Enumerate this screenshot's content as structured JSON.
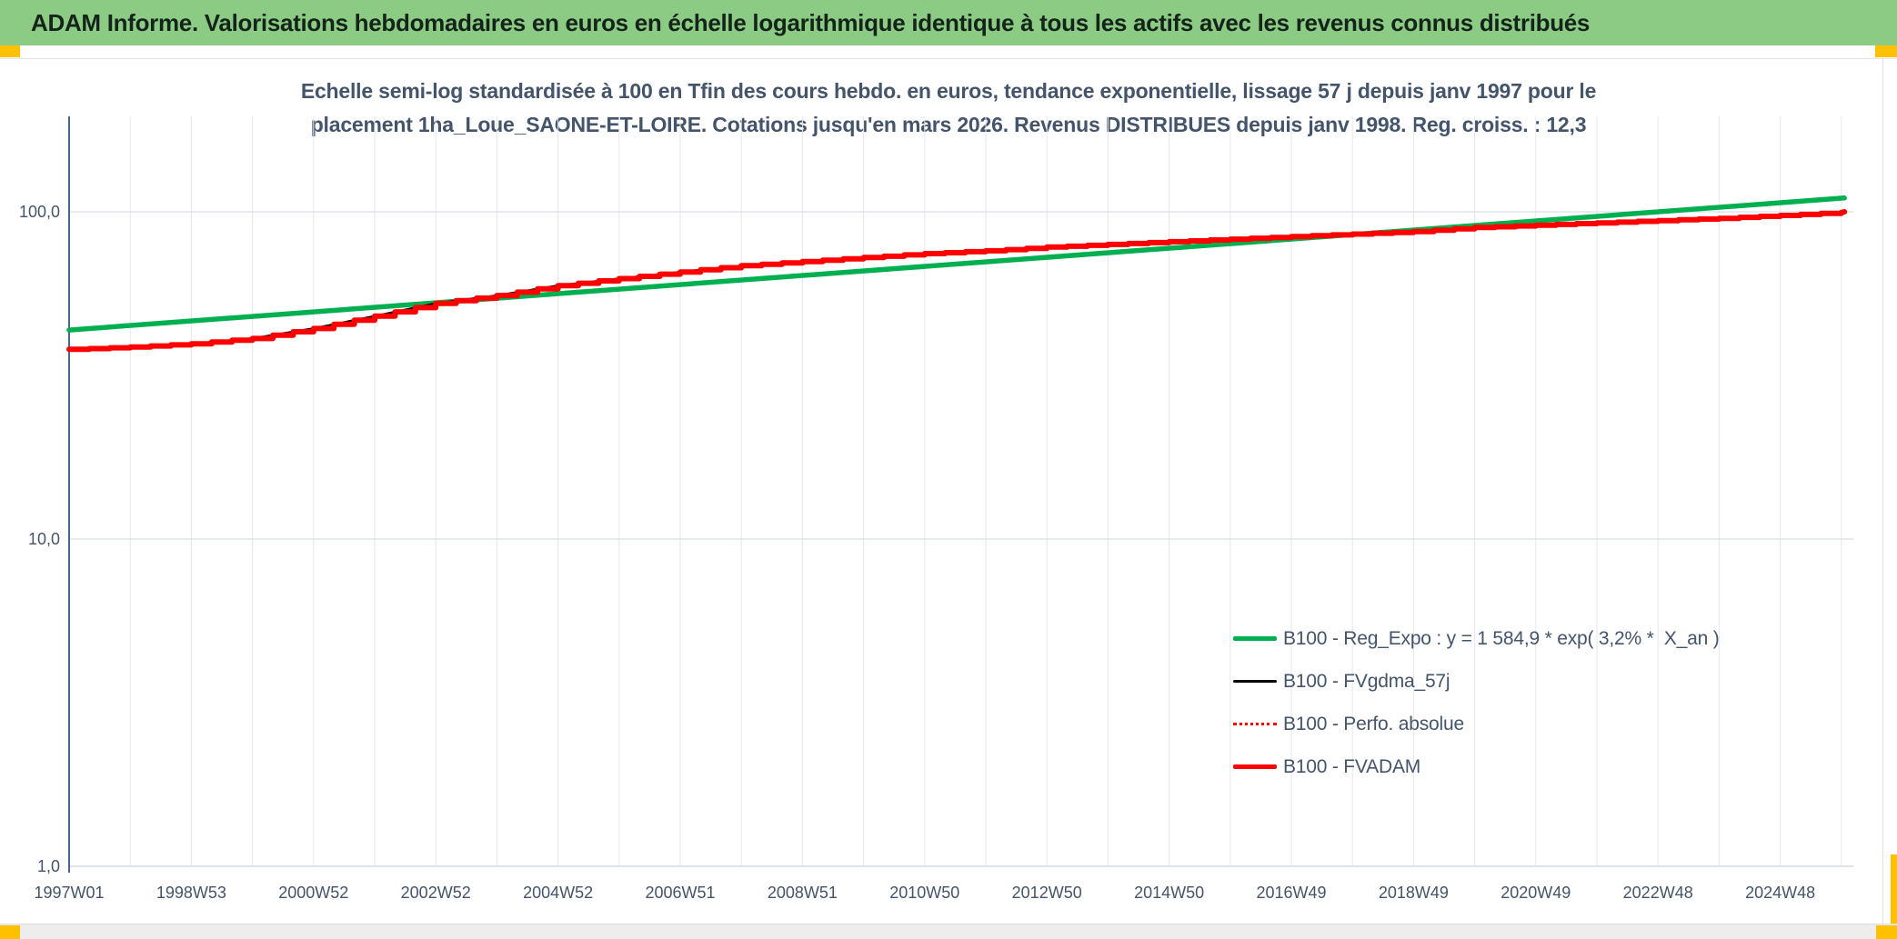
{
  "header": {
    "title": "ADAM Informe. Valorisations hebdomadaires en euros en échelle logarithmique identique à tous les actifs avec les revenus connus distribués",
    "bar_color": "#8CCB84",
    "accent_color": "#FFC000"
  },
  "chart_data": {
    "type": "line",
    "title_line1": "Echelle semi-log standardisée à 100 en Tfin des cours hebdo. en euros, tendance exponentielle, lissage 57 j depuis janv 1997 pour le",
    "title_line2": "placement 1ha_Loue_SAONE-ET-LOIRE. Cotations jusqu'en mars 2026. Revenus DISTRIBUES depuis janv 1998. Reg. croiss. : 12,3",
    "y_axis": {
      "scale": "log10",
      "ticks": [
        {
          "label": "100,0",
          "value": 100
        },
        {
          "label": "10,0",
          "value": 10
        },
        {
          "label": "1,0",
          "value": 1
        }
      ]
    },
    "x_axis": {
      "tick_labels": [
        "1997W01",
        "1998W53",
        "2000W52",
        "2002W52",
        "2004W52",
        "2006W51",
        "2008W51",
        "2010W50",
        "2012W50",
        "2014W50",
        "2016W49",
        "2018W49",
        "2020W49",
        "2022W48",
        "2024W48"
      ],
      "tick_start_year": 1997,
      "tick_step_years": 2,
      "gridline_step_years": 1,
      "start_year": 1997,
      "end_year": 2026.05
    },
    "series": [
      {
        "name": "B100 - Reg_Expo : y = 1 584,9 * exp( 3,2% *  X_an )",
        "color": "#00B050",
        "style": "solid",
        "width": 5.5,
        "model": "exponential",
        "start_year": 1997,
        "start_value": 43.5,
        "annual_growth": 0.032,
        "end_year": 2026.05
      },
      {
        "name": "B100 - FVgdma_57j",
        "color": "#000000",
        "style": "solid",
        "width": 2.5,
        "model": "smooth_of_fvadam"
      },
      {
        "name": "B100 - Perfo. absolue",
        "color": "#FF0000",
        "style": "dotted",
        "width": 2,
        "model": "smooth_of_fvadam"
      },
      {
        "name": "B100 - FVADAM",
        "color": "#FF0000",
        "style": "step",
        "width": 6,
        "model": "points",
        "years": [
          1997,
          1998,
          1999,
          2000,
          2001,
          2002,
          2003,
          2004,
          2005,
          2006,
          2007,
          2008,
          2009,
          2010,
          2011,
          2012,
          2013,
          2014,
          2015,
          2016,
          2017,
          2018,
          2019,
          2020,
          2021,
          2022,
          2023,
          2024,
          2025,
          2026
        ],
        "values": [
          38.0,
          38.6,
          39.5,
          41.0,
          44.0,
          48.0,
          52.5,
          55.5,
          59.5,
          62.5,
          65.5,
          68.5,
          70.5,
          72.5,
          74.5,
          76.0,
          78.0,
          79.5,
          81.0,
          82.5,
          84.0,
          85.5,
          87.0,
          89.5,
          91.0,
          92.5,
          94.0,
          95.5,
          97.5,
          99.5
        ],
        "end": {
          "year": 2026.05,
          "value": 100
        }
      }
    ],
    "legend_position": "inside-right-bottom",
    "grid": true
  }
}
